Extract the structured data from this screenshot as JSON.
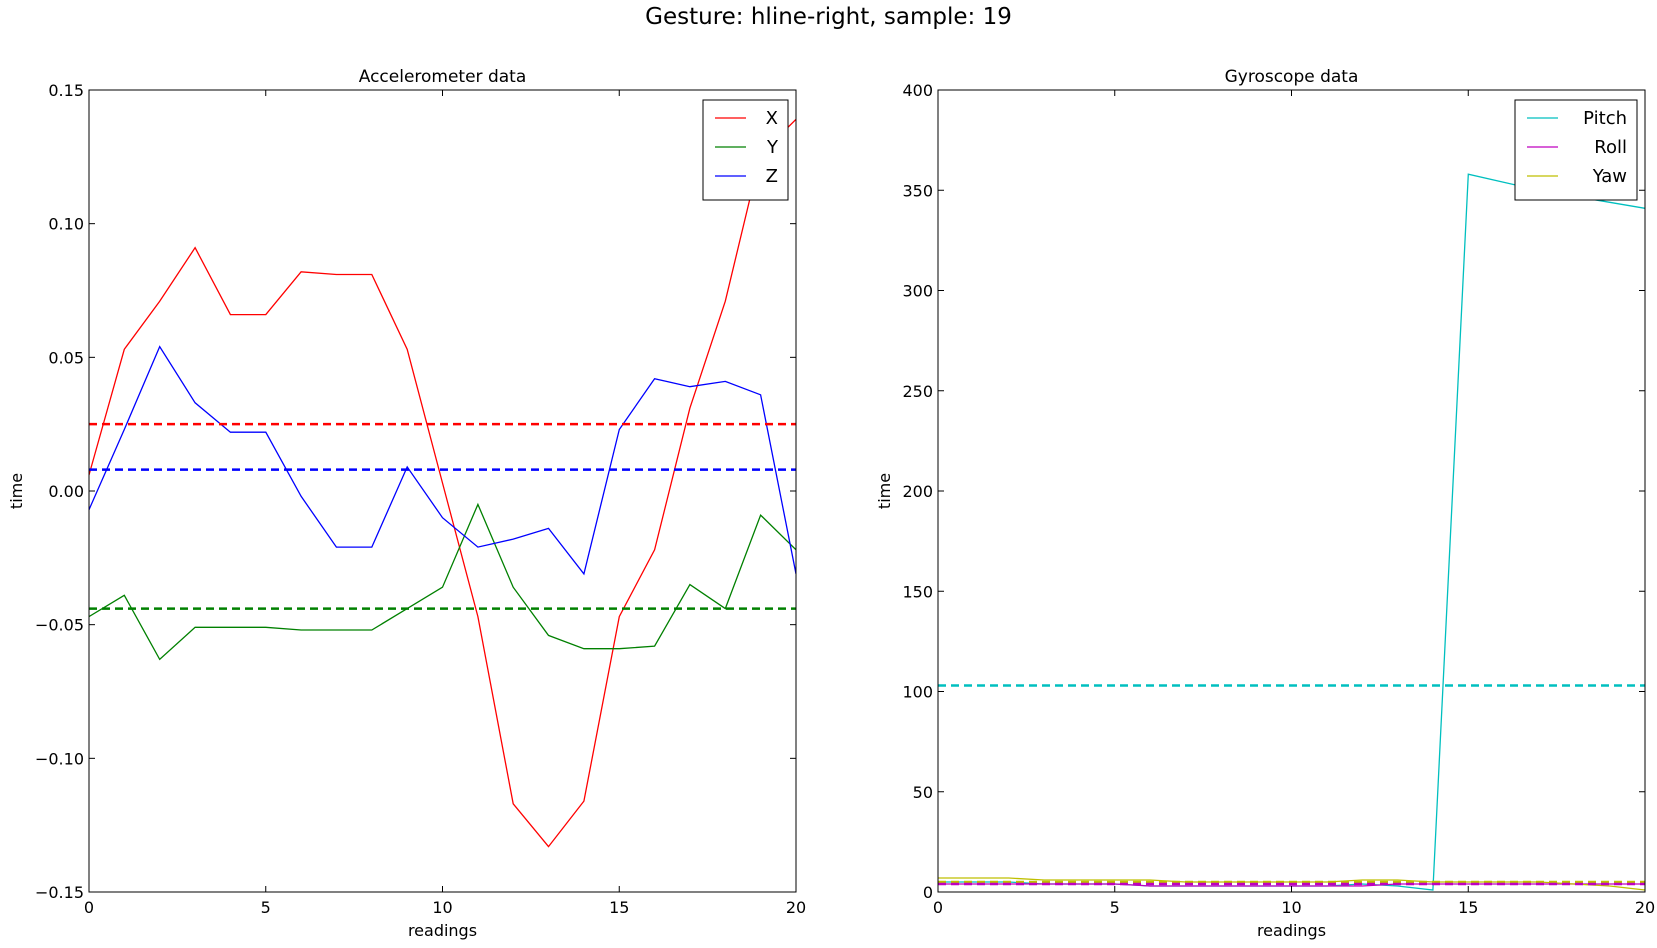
{
  "suptitle": "Gesture: hline-right, sample: 19",
  "chart_data": [
    {
      "type": "line",
      "title": "Accelerometer data",
      "xlabel": "readings",
      "ylabel": "time",
      "xlim": [
        0,
        20
      ],
      "ylim": [
        -0.15,
        0.15
      ],
      "xticks": [
        0,
        5,
        10,
        15,
        20
      ],
      "xtick_labels": [
        "0",
        "5",
        "10",
        "15",
        "20"
      ],
      "yticks": [
        -0.15,
        -0.1,
        -0.05,
        0.0,
        0.05,
        0.1,
        0.15
      ],
      "ytick_labels": [
        "−0.15",
        "−0.10",
        "−0.05",
        "0.00",
        "0.05",
        "0.10",
        "0.15"
      ],
      "grid": false,
      "legend": "top-right",
      "series": [
        {
          "name": "X",
          "color": "#ff0000",
          "x": [
            0,
            1,
            2,
            3,
            4,
            5,
            6,
            7,
            8,
            9,
            10,
            11,
            12,
            13,
            14,
            15,
            16,
            17,
            18,
            19,
            20
          ],
          "y": [
            0.006,
            0.053,
            0.071,
            0.091,
            0.066,
            0.066,
            0.082,
            0.081,
            0.081,
            0.053,
            0.003,
            -0.047,
            -0.117,
            -0.133,
            -0.116,
            -0.047,
            -0.022,
            0.031,
            0.071,
            0.126,
            0.139
          ]
        },
        {
          "name": "Y",
          "color": "#008000",
          "x": [
            0,
            1,
            2,
            3,
            4,
            5,
            6,
            7,
            8,
            9,
            10,
            11,
            12,
            13,
            14,
            15,
            16,
            17,
            18,
            19,
            20
          ],
          "y": [
            -0.047,
            -0.039,
            -0.063,
            -0.051,
            -0.051,
            -0.051,
            -0.052,
            -0.052,
            -0.052,
            -0.044,
            -0.036,
            -0.005,
            -0.036,
            -0.054,
            -0.059,
            -0.059,
            -0.058,
            -0.035,
            -0.044,
            -0.009,
            -0.022
          ]
        },
        {
          "name": "Z",
          "color": "#0000ff",
          "x": [
            0,
            1,
            2,
            3,
            4,
            5,
            6,
            7,
            8,
            9,
            10,
            11,
            12,
            13,
            14,
            15,
            16,
            17,
            18,
            19,
            20
          ],
          "y": [
            -0.007,
            0.023,
            0.054,
            0.033,
            0.022,
            0.022,
            -0.002,
            -0.021,
            -0.021,
            0.009,
            -0.01,
            -0.021,
            -0.018,
            -0.014,
            -0.031,
            0.023,
            0.042,
            0.039,
            0.041,
            0.036,
            -0.031
          ]
        }
      ],
      "mean_lines": [
        {
          "value": 0.025,
          "color": "#ff0000"
        },
        {
          "value": 0.008,
          "color": "#0000ff"
        },
        {
          "value": -0.044,
          "color": "#008000"
        }
      ]
    },
    {
      "type": "line",
      "title": "Gyroscope data",
      "xlabel": "readings",
      "ylabel": "time",
      "xlim": [
        0,
        20
      ],
      "ylim": [
        0,
        400
      ],
      "xticks": [
        0,
        5,
        10,
        15,
        20
      ],
      "xtick_labels": [
        "0",
        "5",
        "10",
        "15",
        "20"
      ],
      "yticks": [
        0,
        50,
        100,
        150,
        200,
        250,
        300,
        350,
        400
      ],
      "ytick_labels": [
        "0",
        "50",
        "100",
        "150",
        "200",
        "250",
        "300",
        "350",
        "400"
      ],
      "grid": false,
      "legend": "top-right",
      "series": [
        {
          "name": "Pitch",
          "color": "#00bfbf",
          "x": [
            0,
            1,
            2,
            3,
            4,
            5,
            6,
            7,
            8,
            9,
            10,
            11,
            12,
            13,
            14,
            15,
            16,
            17,
            18,
            19,
            20
          ],
          "y": [
            5,
            5,
            5,
            4,
            4,
            4,
            3,
            3,
            3,
            3,
            3,
            3,
            4,
            3,
            1,
            358,
            354,
            350,
            347,
            344,
            341
          ]
        },
        {
          "name": "Roll",
          "color": "#bf00bf",
          "x": [
            0,
            1,
            2,
            3,
            4,
            5,
            6,
            7,
            8,
            9,
            10,
            11,
            12,
            13,
            14,
            15,
            16,
            17,
            18,
            19,
            20
          ],
          "y": [
            4,
            4,
            4,
            4,
            4,
            4,
            3,
            3,
            3,
            3,
            3,
            3,
            3,
            4,
            4,
            4,
            4,
            4,
            4,
            4,
            4
          ]
        },
        {
          "name": "Yaw",
          "color": "#bfbf00",
          "x": [
            0,
            1,
            2,
            3,
            4,
            5,
            6,
            7,
            8,
            9,
            10,
            11,
            12,
            13,
            14,
            15,
            16,
            17,
            18,
            19,
            20
          ],
          "y": [
            7,
            7,
            7,
            6,
            6,
            6,
            6,
            5,
            5,
            5,
            5,
            5,
            6,
            6,
            5,
            5,
            5,
            5,
            4,
            3,
            1
          ]
        }
      ],
      "mean_lines": [
        {
          "value": 103,
          "color": "#00bfbf"
        },
        {
          "value": 5,
          "color": "#bfbf00"
        },
        {
          "value": 4,
          "color": "#bf00bf"
        }
      ]
    }
  ]
}
